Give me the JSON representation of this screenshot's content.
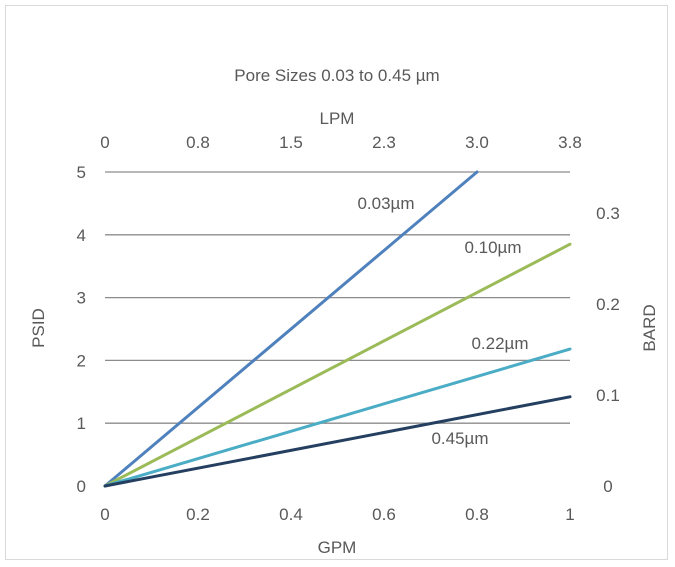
{
  "chart_data": {
    "type": "line",
    "title": "Pore Sizes 0.03 to 0.45 µm",
    "xlabel": "GPM",
    "x2label": "LPM",
    "ylabel": "PSID",
    "y2label": "BARD",
    "xlim": [
      0,
      1
    ],
    "ylim": [
      0,
      5
    ],
    "x_ticks": [
      "0",
      "0.2",
      "0.4",
      "0.6",
      "0.8",
      "1"
    ],
    "x_tick_values": [
      0,
      0.2,
      0.4,
      0.6,
      0.8,
      1
    ],
    "x2_ticks": [
      "0",
      "0.8",
      "1.5",
      "2.3",
      "3.0",
      "3.8"
    ],
    "y_ticks": [
      "0",
      "1",
      "2",
      "3",
      "4",
      "5"
    ],
    "y_tick_values": [
      0,
      1,
      2,
      3,
      4,
      5
    ],
    "y2_ticks": [
      "0",
      "0.1",
      "0.2",
      "0.3"
    ],
    "y2_tick_values": [
      0,
      0.1,
      0.2,
      0.3
    ],
    "y2_psid_per_unit": 14.5,
    "grid": true,
    "series": [
      {
        "name": "0.03µm",
        "color": "#4f81bd",
        "x": [
          0,
          0.8
        ],
        "y": [
          0,
          5.0
        ]
      },
      {
        "name": "0.10µm",
        "color": "#9bbb59",
        "x": [
          0,
          1
        ],
        "y": [
          0,
          3.85
        ]
      },
      {
        "name": "0.22µm",
        "color": "#4bacc6",
        "x": [
          0,
          1
        ],
        "y": [
          0,
          2.18
        ]
      },
      {
        "name": "0.45µm",
        "color": "#243f60",
        "x": [
          0,
          1
        ],
        "y": [
          0,
          1.42
        ]
      }
    ]
  }
}
